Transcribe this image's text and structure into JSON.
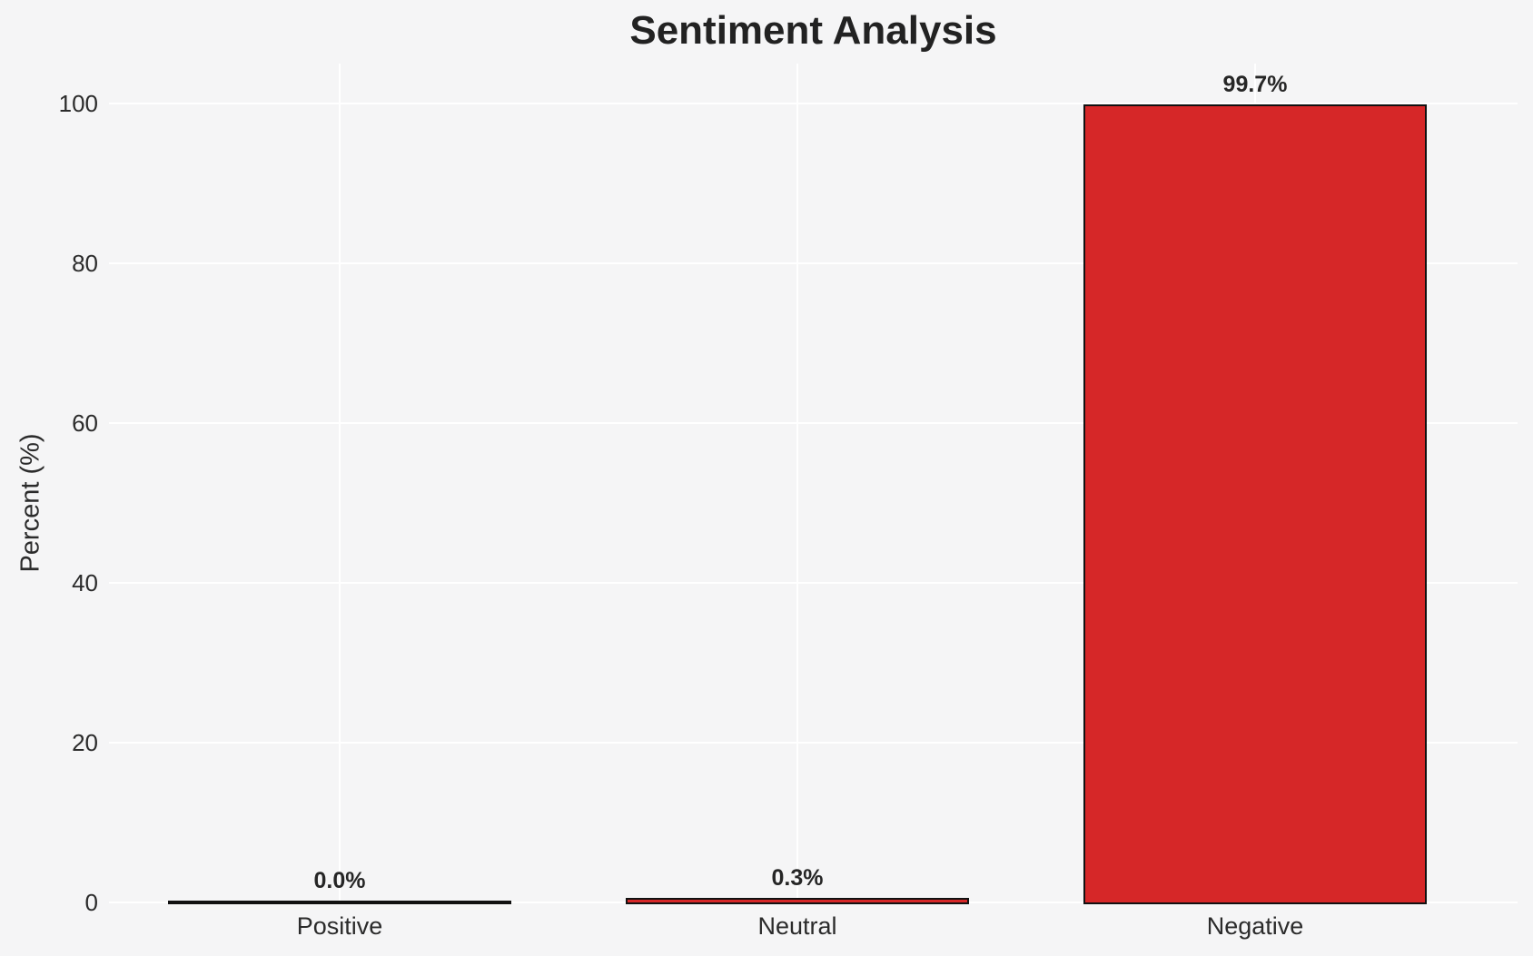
{
  "chart_data": {
    "type": "bar",
    "title": "Sentiment Analysis",
    "xlabel": "",
    "ylabel": "Percent (%)",
    "categories": [
      "Positive",
      "Neutral",
      "Negative"
    ],
    "values": [
      0.0,
      0.3,
      99.7
    ],
    "value_labels": [
      "0.0%",
      "0.3%",
      "99.7%"
    ],
    "yticks": [
      0,
      20,
      40,
      60,
      80,
      100
    ],
    "ytick_labels": [
      "0",
      "20",
      "40",
      "60",
      "80",
      "100"
    ],
    "ylim": [
      0,
      105
    ],
    "grid": true,
    "legend": false,
    "colors": {
      "bar_fill": "#d62728",
      "bar_edge": "#111111",
      "background": "#f5f5f6",
      "gridline": "#ffffff",
      "title_text": "#222222",
      "tick_text": "#2b2b2b",
      "value_label_text": "#262626"
    }
  }
}
